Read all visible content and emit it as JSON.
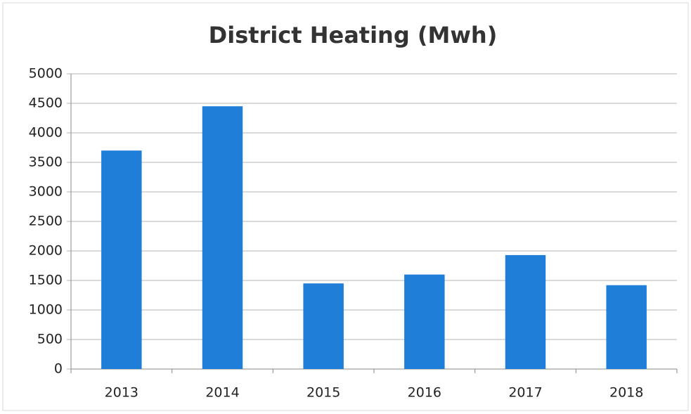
{
  "chart_data": {
    "type": "bar",
    "title": "District Heating (Mwh)",
    "categories": [
      "2013",
      "2014",
      "2015",
      "2016",
      "2017",
      "2018"
    ],
    "values": [
      3700,
      4450,
      1450,
      1600,
      1930,
      1420
    ],
    "color": "#1f7fd8",
    "ylim": [
      0,
      5000
    ],
    "yticks": [
      0,
      500,
      1000,
      1500,
      2000,
      2500,
      3000,
      3500,
      4000,
      4500,
      5000
    ],
    "grid": true
  }
}
